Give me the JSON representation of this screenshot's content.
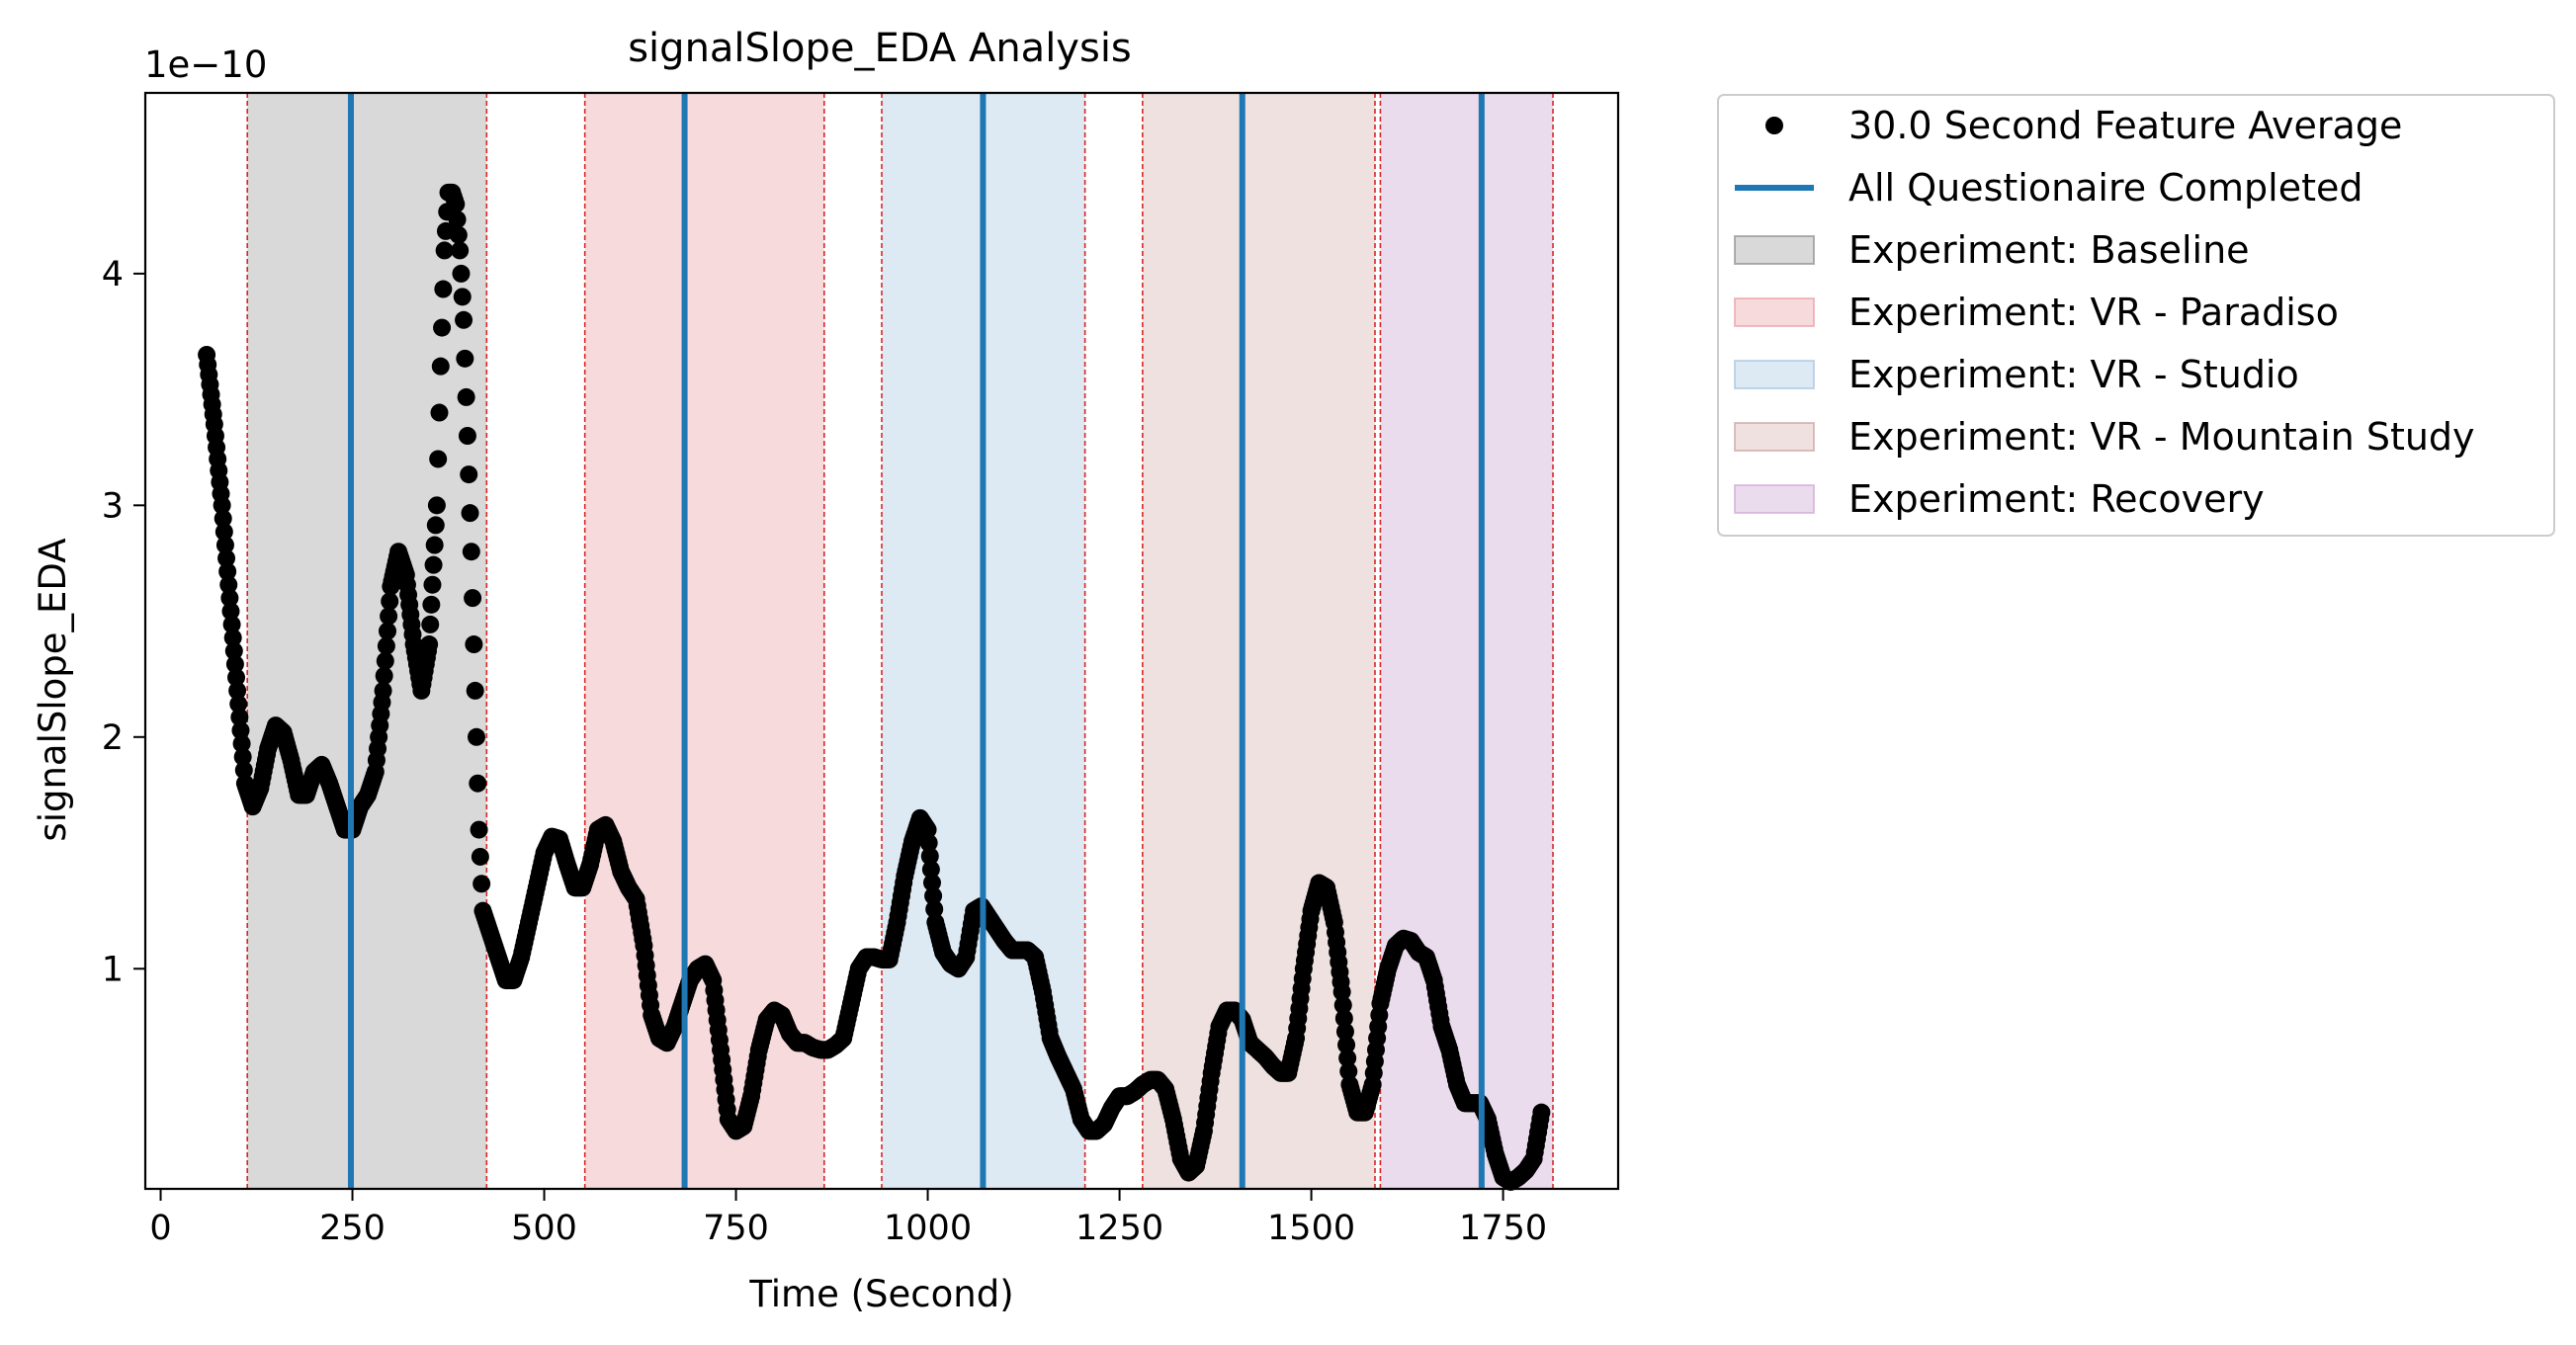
{
  "chart_data": {
    "type": "scatter",
    "title": "signalSlope_EDA Analysis",
    "xlabel": "Time (Second)",
    "ylabel": "signalSlope_EDA",
    "y_offset_label": "1e−10",
    "xlim": [
      -20,
      1900
    ],
    "ylim": [
      0.05,
      4.78
    ],
    "x_ticks": [
      0,
      250,
      500,
      750,
      1000,
      1250,
      1500,
      1750
    ],
    "y_ticks": [
      1,
      2,
      3,
      4
    ],
    "grid": false,
    "legend_placement": "outside top-right",
    "colors": {
      "points": "#000000",
      "questionnaire_line": "#1f77b4",
      "boundary": "#d62728"
    },
    "series": [
      {
        "name": "30.0 Second Feature Average",
        "kind": "scatter",
        "color": "#000000",
        "anchors": [
          [
            60,
            3.65
          ],
          [
            70,
            3.35
          ],
          [
            80,
            3.0
          ],
          [
            90,
            2.6
          ],
          [
            100,
            2.2
          ],
          [
            110,
            1.8
          ],
          [
            120,
            1.7
          ],
          [
            130,
            1.78
          ],
          [
            140,
            1.95
          ],
          [
            150,
            2.05
          ],
          [
            160,
            2.02
          ],
          [
            170,
            1.9
          ],
          [
            180,
            1.75
          ],
          [
            190,
            1.75
          ],
          [
            200,
            1.85
          ],
          [
            210,
            1.88
          ],
          [
            220,
            1.8
          ],
          [
            230,
            1.7
          ],
          [
            240,
            1.6
          ],
          [
            250,
            1.6
          ],
          [
            260,
            1.7
          ],
          [
            270,
            1.75
          ],
          [
            280,
            1.85
          ],
          [
            290,
            2.2
          ],
          [
            300,
            2.65
          ],
          [
            310,
            2.8
          ],
          [
            320,
            2.7
          ],
          [
            330,
            2.4
          ],
          [
            340,
            2.2
          ],
          [
            350,
            2.4
          ],
          [
            360,
            3.0
          ],
          [
            365,
            3.6
          ],
          [
            370,
            4.1
          ],
          [
            375,
            4.35
          ],
          [
            380,
            4.35
          ],
          [
            385,
            4.3
          ],
          [
            390,
            4.1
          ],
          [
            395,
            3.8
          ],
          [
            400,
            3.3
          ],
          [
            405,
            2.8
          ],
          [
            410,
            2.2
          ],
          [
            415,
            1.6
          ],
          [
            420,
            1.25
          ],
          [
            430,
            1.15
          ],
          [
            440,
            1.05
          ],
          [
            450,
            0.95
          ],
          [
            460,
            0.95
          ],
          [
            470,
            1.05
          ],
          [
            480,
            1.2
          ],
          [
            490,
            1.35
          ],
          [
            500,
            1.5
          ],
          [
            510,
            1.57
          ],
          [
            520,
            1.56
          ],
          [
            530,
            1.45
          ],
          [
            540,
            1.35
          ],
          [
            550,
            1.35
          ],
          [
            560,
            1.45
          ],
          [
            570,
            1.6
          ],
          [
            580,
            1.62
          ],
          [
            590,
            1.55
          ],
          [
            600,
            1.42
          ],
          [
            610,
            1.35
          ],
          [
            620,
            1.3
          ],
          [
            630,
            1.1
          ],
          [
            640,
            0.8
          ],
          [
            650,
            0.7
          ],
          [
            660,
            0.68
          ],
          [
            670,
            0.75
          ],
          [
            680,
            0.85
          ],
          [
            690,
            0.95
          ],
          [
            700,
            1.0
          ],
          [
            710,
            1.02
          ],
          [
            720,
            0.95
          ],
          [
            730,
            0.65
          ],
          [
            740,
            0.35
          ],
          [
            750,
            0.3
          ],
          [
            760,
            0.32
          ],
          [
            770,
            0.45
          ],
          [
            780,
            0.65
          ],
          [
            790,
            0.78
          ],
          [
            800,
            0.82
          ],
          [
            810,
            0.8
          ],
          [
            820,
            0.72
          ],
          [
            830,
            0.68
          ],
          [
            840,
            0.68
          ],
          [
            850,
            0.66
          ],
          [
            860,
            0.65
          ],
          [
            870,
            0.65
          ],
          [
            880,
            0.67
          ],
          [
            890,
            0.7
          ],
          [
            900,
            0.85
          ],
          [
            910,
            1.0
          ],
          [
            920,
            1.05
          ],
          [
            930,
            1.05
          ],
          [
            940,
            1.04
          ],
          [
            950,
            1.04
          ],
          [
            960,
            1.2
          ],
          [
            970,
            1.4
          ],
          [
            980,
            1.55
          ],
          [
            990,
            1.65
          ],
          [
            1000,
            1.6
          ],
          [
            1010,
            1.2
          ],
          [
            1020,
            1.07
          ],
          [
            1030,
            1.02
          ],
          [
            1040,
            1.0
          ],
          [
            1050,
            1.05
          ],
          [
            1060,
            1.25
          ],
          [
            1070,
            1.27
          ],
          [
            1080,
            1.22
          ],
          [
            1090,
            1.17
          ],
          [
            1100,
            1.12
          ],
          [
            1110,
            1.08
          ],
          [
            1120,
            1.08
          ],
          [
            1130,
            1.08
          ],
          [
            1140,
            1.05
          ],
          [
            1150,
            0.9
          ],
          [
            1160,
            0.7
          ],
          [
            1170,
            0.62
          ],
          [
            1180,
            0.55
          ],
          [
            1190,
            0.48
          ],
          [
            1200,
            0.35
          ],
          [
            1210,
            0.3
          ],
          [
            1220,
            0.3
          ],
          [
            1230,
            0.33
          ],
          [
            1240,
            0.4
          ],
          [
            1250,
            0.45
          ],
          [
            1260,
            0.45
          ],
          [
            1270,
            0.47
          ],
          [
            1280,
            0.5
          ],
          [
            1290,
            0.52
          ],
          [
            1300,
            0.52
          ],
          [
            1310,
            0.48
          ],
          [
            1320,
            0.35
          ],
          [
            1330,
            0.18
          ],
          [
            1340,
            0.12
          ],
          [
            1350,
            0.15
          ],
          [
            1360,
            0.3
          ],
          [
            1370,
            0.55
          ],
          [
            1380,
            0.75
          ],
          [
            1390,
            0.82
          ],
          [
            1400,
            0.82
          ],
          [
            1410,
            0.78
          ],
          [
            1420,
            0.68
          ],
          [
            1430,
            0.65
          ],
          [
            1440,
            0.62
          ],
          [
            1450,
            0.58
          ],
          [
            1460,
            0.55
          ],
          [
            1470,
            0.55
          ],
          [
            1480,
            0.7
          ],
          [
            1490,
            1.0
          ],
          [
            1500,
            1.25
          ],
          [
            1510,
            1.37
          ],
          [
            1520,
            1.35
          ],
          [
            1530,
            1.2
          ],
          [
            1540,
            0.9
          ],
          [
            1550,
            0.5
          ],
          [
            1560,
            0.38
          ],
          [
            1570,
            0.38
          ],
          [
            1580,
            0.5
          ],
          [
            1590,
            0.85
          ],
          [
            1600,
            1.0
          ],
          [
            1610,
            1.1
          ],
          [
            1620,
            1.13
          ],
          [
            1630,
            1.12
          ],
          [
            1640,
            1.07
          ],
          [
            1650,
            1.05
          ],
          [
            1660,
            0.95
          ],
          [
            1670,
            0.75
          ],
          [
            1680,
            0.65
          ],
          [
            1690,
            0.5
          ],
          [
            1700,
            0.42
          ],
          [
            1710,
            0.42
          ],
          [
            1720,
            0.42
          ],
          [
            1730,
            0.35
          ],
          [
            1740,
            0.2
          ],
          [
            1750,
            0.1
          ],
          [
            1760,
            0.08
          ],
          [
            1770,
            0.1
          ],
          [
            1780,
            0.13
          ],
          [
            1790,
            0.18
          ],
          [
            1800,
            0.38
          ]
        ]
      },
      {
        "name": "All Questionaire Completed",
        "kind": "vertical_lines",
        "color": "#1f77b4",
        "x": [
          248,
          683,
          1072,
          1410,
          1722
        ]
      }
    ],
    "regions": [
      {
        "name": "Experiment: Baseline",
        "x_start": 113,
        "x_end": 425,
        "color": "#808080",
        "alpha": 0.3
      },
      {
        "name": "Experiment: VR - Paradiso",
        "x_start": 553,
        "x_end": 865,
        "color": "#e7949c",
        "alpha": 0.35
      },
      {
        "name": "Experiment: VR - Studio",
        "x_start": 940,
        "x_end": 1205,
        "color": "#9dbfdc",
        "alpha": 0.35
      },
      {
        "name": "Experiment: VR - Mountain Study",
        "x_start": 1280,
        "x_end": 1583,
        "color": "#c89a98",
        "alpha": 0.3
      },
      {
        "name": "Experiment: Recovery",
        "x_start": 1590,
        "x_end": 1815,
        "color": "#c9a0cf",
        "alpha": 0.38
      }
    ],
    "boundaries": [
      113,
      425,
      553,
      865,
      940,
      1205,
      1280,
      1583,
      1590,
      1815
    ]
  }
}
